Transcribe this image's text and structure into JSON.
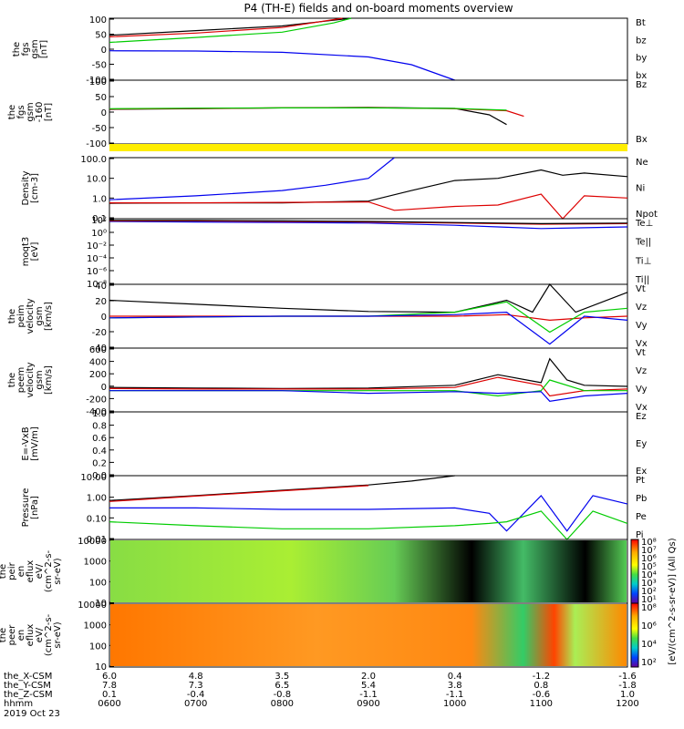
{
  "title": "P4 (TH-E) fields and on-board moments overview",
  "colors": {
    "black": "#000000",
    "red": "#dd0000",
    "green": "#00cc00",
    "blue": "#0000ee",
    "yellow": "#ffee00"
  },
  "chart_data": [
    {
      "type": "line",
      "name": "fgs",
      "ylabel": [
        "the",
        "fgs",
        "gsm",
        "[nT]"
      ],
      "yticks": [
        "100",
        "50",
        "0",
        "-50",
        "-100"
      ],
      "ylim": [
        -100,
        100
      ],
      "legend": [
        {
          "label": "Bt",
          "color": "black"
        },
        {
          "label": "bz",
          "color": "red"
        },
        {
          "label": "by",
          "color": "green"
        },
        {
          "label": "bx",
          "color": "blue"
        }
      ],
      "series": [
        {
          "color": "black",
          "x": [
            600,
            700,
            800,
            855,
            880
          ],
          "y": [
            45,
            60,
            75,
            92,
            100
          ]
        },
        {
          "color": "red",
          "x": [
            600,
            700,
            800,
            870
          ],
          "y": [
            40,
            52,
            70,
            100
          ]
        },
        {
          "color": "green",
          "x": [
            600,
            700,
            800,
            860,
            880
          ],
          "y": [
            22,
            38,
            55,
            85,
            100
          ]
        },
        {
          "color": "blue",
          "x": [
            600,
            700,
            800,
            900,
            950,
            1000
          ],
          "y": [
            -5,
            -6,
            -10,
            -25,
            -50,
            -100
          ]
        }
      ]
    },
    {
      "type": "line",
      "name": "fgs-dsl",
      "ylabel": [
        "the",
        "fgs",
        "gsm",
        "-160",
        "[nT]"
      ],
      "yticks": [
        "100",
        "50",
        "0",
        "-50",
        "-100"
      ],
      "ylim": [
        -130,
        100
      ],
      "legend": [
        {
          "label": "Bz",
          "color": "red"
        },
        {
          "label": "Bx",
          "color": "green"
        }
      ],
      "series": [
        {
          "color": "black",
          "x": [
            600,
            700,
            800,
            900,
            1000,
            1040,
            1060
          ],
          "y": [
            -5,
            -3,
            0,
            2,
            -2,
            -25,
            -60
          ]
        },
        {
          "color": "red",
          "x": [
            600,
            700,
            800,
            900,
            1000,
            1060,
            1080
          ],
          "y": [
            -4,
            -2,
            0,
            1,
            -3,
            -10,
            -30
          ]
        },
        {
          "color": "green",
          "x": [
            600,
            700,
            800,
            900,
            1000,
            1060
          ],
          "y": [
            -3,
            -1,
            0,
            0,
            -2,
            -8
          ]
        }
      ]
    },
    {
      "type": "line",
      "name": "density",
      "ylabel": [
        "Density",
        "[cm-3]"
      ],
      "yticks": [
        "100.0",
        "10.0",
        "1.0",
        "0.1"
      ],
      "ylim": [
        0.1,
        300
      ],
      "yscale": "log",
      "legend": [
        {
          "label": "Ne",
          "color": "red"
        },
        {
          "label": "Ni",
          "color": "black"
        },
        {
          "label": "Npot",
          "color": "blue"
        }
      ],
      "series": [
        {
          "color": "black",
          "x": [
            600,
            700,
            800,
            900,
            950,
            1000,
            1050,
            1100,
            1125,
            1150,
            1200
          ],
          "y": [
            0.75,
            0.8,
            0.8,
            1.0,
            4,
            15,
            20,
            60,
            30,
            40,
            25
          ]
        },
        {
          "color": "red",
          "x": [
            600,
            700,
            800,
            900,
            930,
            1000,
            1050,
            1100,
            1125,
            1150,
            1200
          ],
          "y": [
            0.8,
            0.8,
            0.85,
            0.9,
            0.3,
            0.5,
            0.6,
            2.5,
            0.1,
            2,
            1.5
          ]
        },
        {
          "color": "blue",
          "x": [
            600,
            700,
            800,
            850,
            900,
            930
          ],
          "y": [
            1.2,
            2,
            4,
            8,
            20,
            300
          ]
        }
      ]
    },
    {
      "type": "line",
      "name": "moqt3",
      "ylabel": [
        "moqt3",
        "[eV]"
      ],
      "yticks": [
        "10²",
        "10⁰",
        "10⁻²",
        "10⁻⁴",
        "10⁻⁶",
        "10⁻⁸"
      ],
      "ylim": [
        -9,
        3
      ],
      "yscale": "log",
      "legend": [
        {
          "label": "Te⊥",
          "color": "red"
        },
        {
          "label": "Te||",
          "color": "black"
        },
        {
          "label": "Ti⊥",
          "color": "blue"
        },
        {
          "label": "Ti||",
          "color": "green"
        }
      ],
      "series": [
        {
          "color": "blue",
          "x": [
            600,
            700,
            800,
            900,
            1000,
            1050,
            1100,
            1200
          ],
          "y": [
            2.5,
            2.4,
            2.3,
            2.2,
            1.8,
            1.5,
            1.2,
            1.5
          ]
        },
        {
          "color": "red",
          "x": [
            600,
            700,
            800,
            900,
            1000,
            1100,
            1200
          ],
          "y": [
            2.6,
            2.6,
            2.5,
            2.4,
            2.2,
            2,
            2.1
          ]
        },
        {
          "color": "black",
          "x": [
            600,
            700,
            800,
            900,
            1000,
            1100,
            1200
          ],
          "y": [
            2.7,
            2.7,
            2.6,
            2.5,
            2.3,
            2.1,
            2.2
          ]
        }
      ]
    },
    {
      "type": "line",
      "name": "peim-velocity",
      "ylabel": [
        "the",
        "peim",
        "velocity",
        "gsm",
        "[km/s]"
      ],
      "yticks": [
        "40",
        "20",
        "0",
        "-20",
        "-40"
      ],
      "ylim": [
        -40,
        40
      ],
      "legend": [
        {
          "label": "Vt",
          "color": "black"
        },
        {
          "label": "Vz",
          "color": "red"
        },
        {
          "label": "Vy",
          "color": "green"
        },
        {
          "label": "Vx",
          "color": "blue"
        }
      ],
      "series": [
        {
          "color": "black",
          "x": [
            600,
            700,
            800,
            900,
            1000,
            1040,
            1060,
            1090,
            1110,
            1140,
            1200
          ],
          "y": [
            20,
            15,
            10,
            6,
            5,
            15,
            20,
            5,
            40,
            5,
            30
          ]
        },
        {
          "color": "red",
          "x": [
            600,
            700,
            800,
            900,
            1000,
            1060,
            1110,
            1150,
            1200
          ],
          "y": [
            0,
            0,
            0,
            0,
            0,
            2,
            -5,
            -2,
            0
          ]
        },
        {
          "color": "green",
          "x": [
            600,
            700,
            800,
            900,
            1000,
            1060,
            1110,
            1150,
            1200
          ],
          "y": [
            -2,
            -1,
            0,
            0,
            5,
            18,
            -20,
            5,
            10
          ]
        },
        {
          "color": "blue",
          "x": [
            600,
            700,
            800,
            900,
            1000,
            1060,
            1110,
            1150,
            1200
          ],
          "y": [
            -2,
            -1,
            0,
            0,
            2,
            5,
            -35,
            0,
            -5
          ]
        }
      ]
    },
    {
      "type": "line",
      "name": "peem-velocity",
      "ylabel": [
        "the",
        "peem",
        "velocity",
        "gsm",
        "[km/s]"
      ],
      "yticks": [
        "600",
        "400",
        "200",
        "0",
        "-200",
        "-400"
      ],
      "ylim": [
        -400,
        800
      ],
      "legend": [
        {
          "label": "Vt",
          "color": "black"
        },
        {
          "label": "Vz",
          "color": "red"
        },
        {
          "label": "Vy",
          "color": "green"
        },
        {
          "label": "Vx",
          "color": "blue"
        }
      ],
      "series": [
        {
          "color": "black",
          "x": [
            600,
            700,
            800,
            900,
            1000,
            1050,
            1100,
            1110,
            1130,
            1150,
            1200
          ],
          "y": [
            60,
            50,
            40,
            50,
            100,
            300,
            150,
            600,
            200,
            100,
            80
          ]
        },
        {
          "color": "red",
          "x": [
            600,
            700,
            800,
            900,
            1000,
            1050,
            1100,
            1110,
            1150,
            1200
          ],
          "y": [
            40,
            30,
            30,
            30,
            60,
            250,
            100,
            -100,
            0,
            30
          ]
        },
        {
          "color": "green",
          "x": [
            600,
            700,
            800,
            900,
            1000,
            1050,
            1100,
            1110,
            1150,
            1200
          ],
          "y": [
            0,
            0,
            0,
            0,
            0,
            -100,
            0,
            200,
            0,
            0
          ]
        },
        {
          "color": "blue",
          "x": [
            600,
            700,
            800,
            900,
            1000,
            1050,
            1100,
            1110,
            1150,
            1200
          ],
          "y": [
            0,
            0,
            0,
            -50,
            -20,
            -50,
            -20,
            -200,
            -100,
            -50
          ]
        }
      ]
    },
    {
      "type": "line",
      "name": "e-field",
      "ylabel": [
        "E=-VxB",
        "[mV/m]"
      ],
      "yticks": [
        "1.0",
        "0.8",
        "0.6",
        "0.4",
        "0.2",
        "0.0"
      ],
      "ylim": [
        0,
        1
      ],
      "legend": [
        {
          "label": "Ez",
          "color": "red"
        },
        {
          "label": "Ey",
          "color": "green"
        },
        {
          "label": "Ex",
          "color": "blue"
        }
      ],
      "series": []
    },
    {
      "type": "line",
      "name": "pressure",
      "ylabel": [
        "Pressure",
        "[nPa]"
      ],
      "yticks": [
        "10.00",
        "1.00",
        "0.10",
        "0.01"
      ],
      "ylim": [
        0.005,
        20
      ],
      "yscale": "log",
      "legend": [
        {
          "label": "Pt",
          "color": "black"
        },
        {
          "label": "Pb",
          "color": "red"
        },
        {
          "label": "Pe",
          "color": "green"
        },
        {
          "label": "Pi",
          "color": "blue"
        }
      ],
      "series": [
        {
          "color": "black",
          "x": [
            600,
            700,
            800,
            900,
            950,
            1000
          ],
          "y": [
            0.8,
            1.5,
            3,
            6,
            10,
            20
          ]
        },
        {
          "color": "red",
          "x": [
            600,
            700,
            800,
            900
          ],
          "y": [
            0.7,
            1.4,
            2.8,
            5.5
          ]
        },
        {
          "color": "blue",
          "x": [
            600,
            700,
            800,
            900,
            1000,
            1040,
            1060,
            1100,
            1130,
            1160,
            1200
          ],
          "y": [
            0.3,
            0.3,
            0.25,
            0.25,
            0.3,
            0.15,
            0.015,
            1.5,
            0.015,
            1.5,
            0.5
          ]
        },
        {
          "color": "green",
          "x": [
            600,
            700,
            800,
            900,
            1000,
            1040,
            1060,
            1100,
            1130,
            1160,
            1200
          ],
          "y": [
            0.05,
            0.03,
            0.02,
            0.02,
            0.03,
            0.04,
            0.05,
            0.2,
            0.005,
            0.2,
            0.04
          ]
        }
      ]
    },
    {
      "type": "heatmap",
      "name": "peir-en-eflux",
      "ylabel": [
        "the",
        "peir",
        "en",
        "eflux",
        "eV/",
        "(cm^2-s-",
        "sr-eV)"
      ],
      "yticks": [
        "10000",
        "1000",
        "100",
        "10"
      ]
    },
    {
      "type": "heatmap",
      "name": "peer-en-eflux",
      "ylabel": [
        "the",
        "peer",
        "en",
        "eflux",
        "eV/",
        "(cm^2-s-",
        "sr-eV)"
      ],
      "yticks": [
        "10000",
        "1000",
        "100",
        "10"
      ]
    }
  ],
  "colorbar": {
    "label": "[eV/(cm^2-s-sr-eV)] (All Qs)",
    "ticks_top": [
      "10⁸",
      "10⁷",
      "10⁶",
      "10⁵",
      "10⁴",
      "10³",
      "10²",
      "10¹"
    ],
    "ticks_bottom": [
      "10⁸",
      "10⁶",
      "10⁴",
      "10²"
    ]
  },
  "time_axis": {
    "rows": [
      {
        "label": "the_X-CSM",
        "values": [
          "6.0",
          "4.8",
          "3.5",
          "2.0",
          "0.4",
          "-1.2",
          "-1.6"
        ]
      },
      {
        "label": "the_Y-CSM",
        "values": [
          "7.8",
          "7.3",
          "6.5",
          "5.4",
          "3.8",
          "0.8",
          "-1.8"
        ]
      },
      {
        "label": "the_Z-CSM",
        "values": [
          "0.1",
          "-0.4",
          "-0.8",
          "-1.1",
          "-1.1",
          "-0.6",
          "1.0"
        ]
      },
      {
        "label": "hhmm",
        "values": [
          "0600",
          "0700",
          "0800",
          "0900",
          "1000",
          "1100",
          "1200"
        ]
      }
    ],
    "date": "2019 Oct 23",
    "xlim": [
      600,
      1200
    ]
  }
}
